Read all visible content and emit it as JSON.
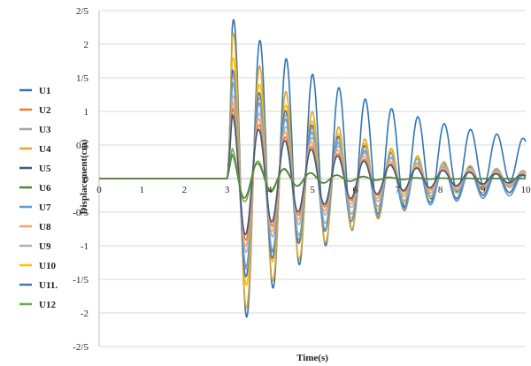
{
  "chart_data": {
    "type": "line",
    "title": "",
    "xlabel": "Time(s)",
    "ylabel": "Displacement(cm)",
    "xlim": [
      0,
      10
    ],
    "ylim": [
      -2.5,
      2.5
    ],
    "x_ticks": [
      0,
      1,
      2,
      3,
      4,
      5,
      6,
      7,
      8,
      9,
      10
    ],
    "x_tick_labels": [
      "0",
      "1",
      "2",
      "3",
      "4",
      "5",
      "6",
      "7",
      "8",
      "9",
      "10"
    ],
    "y_ticks": [
      -2.5,
      -2,
      -1.5,
      -1,
      -0.5,
      0,
      0.5,
      1,
      1.5,
      2,
      2.5
    ],
    "y_tick_labels": [
      "-2/5",
      "-2",
      "-1/5",
      "-1",
      "-0/5",
      "0",
      "0/5",
      "1",
      "1/5",
      "2",
      "2/5"
    ],
    "grid": true,
    "legend_position": "left",
    "excitation_start": 3.0,
    "series": [
      {
        "name": "U1",
        "color": "#2e75b6",
        "peak": 2.45,
        "decay": 0.3,
        "offset": 0.3,
        "freq": 1.62,
        "phase": 0.0
      },
      {
        "name": "U2",
        "color": "#ed7d31",
        "peak": 1.1,
        "decay": 0.42,
        "offset": 0.0,
        "freq": 1.62,
        "phase": 0.2
      },
      {
        "name": "U3",
        "color": "#a5a5a5",
        "peak": 1.6,
        "decay": 0.38,
        "offset": 0.0,
        "freq": 1.62,
        "phase": 0.1
      },
      {
        "name": "U4",
        "color": "#e0a526",
        "peak": 2.3,
        "decay": 0.4,
        "offset": -0.05,
        "freq": 1.62,
        "phase": 0.05
      },
      {
        "name": "U5",
        "color": "#335c8a",
        "peak": 1.0,
        "decay": 0.42,
        "offset": 0.0,
        "freq": 1.62,
        "phase": 0.3
      },
      {
        "name": "U6",
        "color": "#548235",
        "peak": 0.4,
        "decay": 0.8,
        "offset": 0.0,
        "freq": 1.62,
        "phase": 0.5
      },
      {
        "name": "U7",
        "color": "#5b9bd5",
        "peak": 1.5,
        "decay": 0.34,
        "offset": -0.1,
        "freq": 1.62,
        "phase": 0.15
      },
      {
        "name": "U8",
        "color": "#f4a460",
        "peak": 1.2,
        "decay": 0.4,
        "offset": 0.0,
        "freq": 1.62,
        "phase": 0.25
      },
      {
        "name": "U9",
        "color": "#b0b0b0",
        "peak": 1.3,
        "decay": 0.38,
        "offset": 0.0,
        "freq": 1.62,
        "phase": 0.12
      },
      {
        "name": "U10",
        "color": "#ffc000",
        "peak": 1.9,
        "decay": 0.4,
        "offset": 0.0,
        "freq": 1.62,
        "phase": 0.08
      },
      {
        "name": "U11.",
        "color": "#4472c4",
        "peak": 1.7,
        "decay": 0.36,
        "offset": -0.05,
        "freq": 1.62,
        "phase": 0.18
      },
      {
        "name": "U12",
        "color": "#70ad47",
        "peak": 0.5,
        "decay": 0.9,
        "offset": 0.0,
        "freq": 1.62,
        "phase": 0.4
      }
    ]
  }
}
